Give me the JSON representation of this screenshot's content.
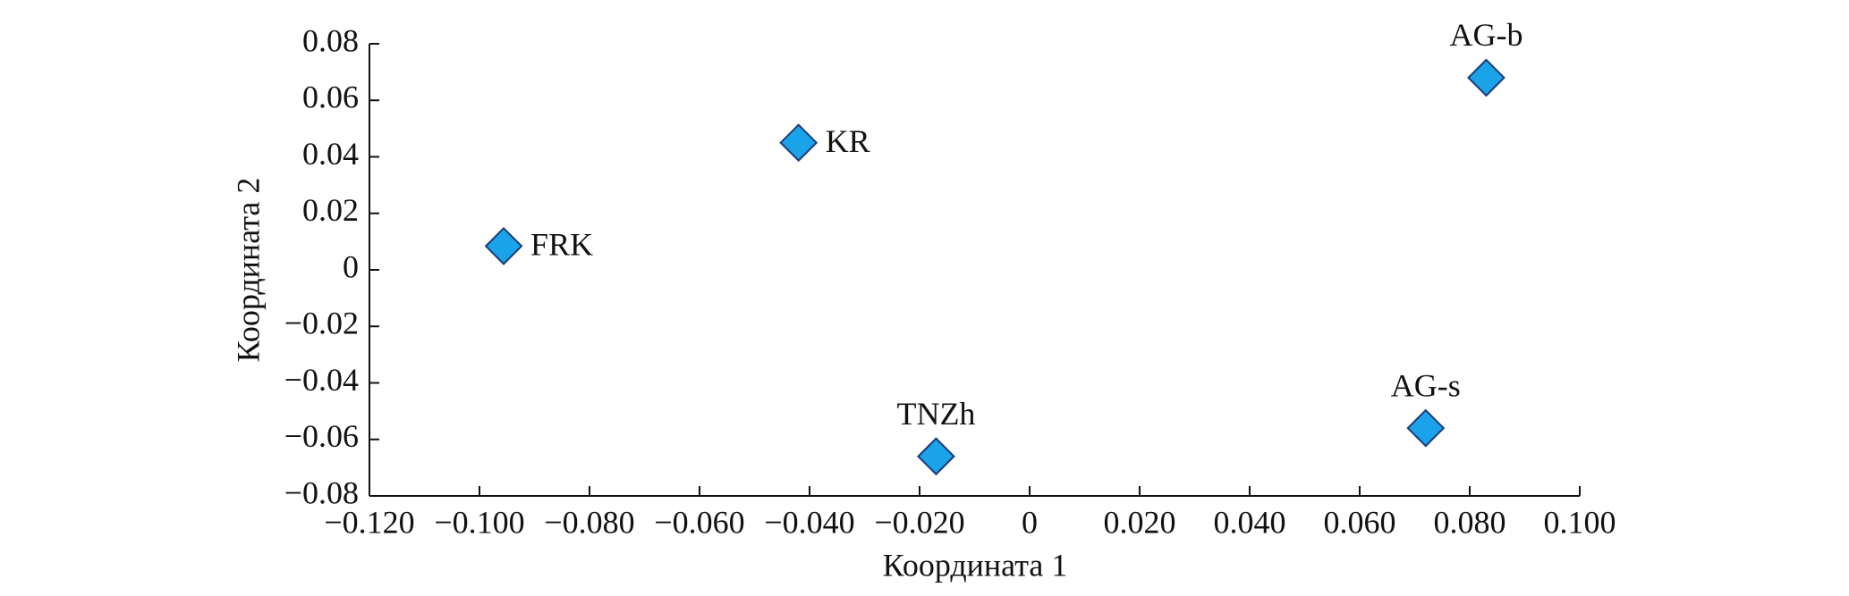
{
  "chart_data": {
    "type": "scatter",
    "x_label": "Координата 1",
    "y_label": "Координата 2",
    "labels": [
      "FRK",
      "KR",
      "TNZh",
      "AG-s",
      "AG-b"
    ],
    "x": [
      -0.0956,
      -0.042,
      -0.017,
      0.072,
      0.083
    ],
    "values": [
      0.0084,
      0.045,
      -0.066,
      -0.056,
      0.068
    ],
    "color": "#1aa3e8",
    "xlim": [
      -0.12,
      0.1
    ],
    "xticks": [
      {
        "value": -0.12,
        "label": "−0.120"
      },
      {
        "value": -0.1,
        "label": "−0.100"
      },
      {
        "value": -0.08,
        "label": "−0.080"
      },
      {
        "value": -0.06,
        "label": "−0.060"
      },
      {
        "value": -0.04,
        "label": "−0.040"
      },
      {
        "value": -0.02,
        "label": "−0.020"
      },
      0,
      {
        "value": 0.02,
        "label": "0.020"
      },
      {
        "value": 0.04,
        "label": "0.040"
      },
      {
        "value": 0.06,
        "label": "0.060"
      },
      {
        "value": 0.08,
        "label": "0.080"
      },
      {
        "value": 0.1,
        "label": "0.100"
      }
    ],
    "ylim": [
      -0.08,
      0.08
    ],
    "yticks": [
      {
        "value": -0.08,
        "label": "−0.08"
      },
      {
        "value": -0.06,
        "label": "−0.06"
      },
      {
        "value": -0.04,
        "label": "−0.04"
      },
      {
        "value": -0.02,
        "label": "−0.02"
      },
      0,
      0.02,
      0.04,
      0.06,
      0.08
    ],
    "grid": false
  }
}
